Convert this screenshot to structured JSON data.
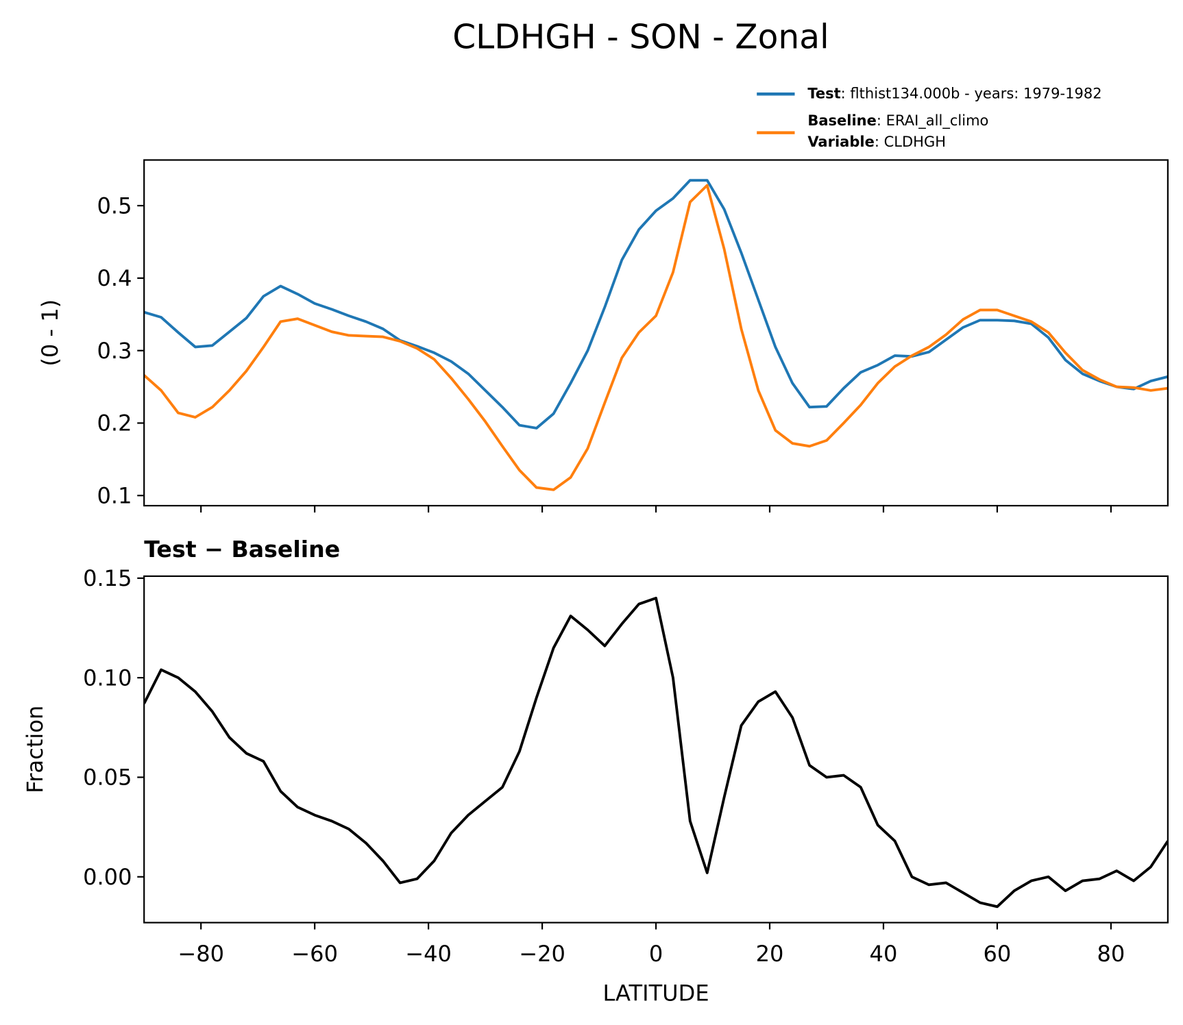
{
  "title": "CLDHGH - SON - Zonal",
  "legend": [
    {
      "name": "Test",
      "label": ": flthist134.000b - years: 1979-1982",
      "color": "#1f77b4"
    },
    {
      "name": "Baseline",
      "label": ": ERAI_all_climo",
      "name2": "Variable",
      "label2": ": CLDHGH",
      "color": "#ff7f0e"
    }
  ],
  "chart_data": [
    {
      "type": "line",
      "ylabel": "(0 - 1)",
      "x": [
        -90,
        -87,
        -84,
        -81,
        -78,
        -75,
        -72,
        -69,
        -66,
        -63,
        -60,
        -57,
        -54,
        -51,
        -48,
        -45,
        -42,
        -39,
        -36,
        -33,
        -30,
        -27,
        -24,
        -21,
        -18,
        -15,
        -12,
        -9,
        -6,
        -3,
        0,
        3,
        6,
        9,
        12,
        15,
        18,
        21,
        24,
        27,
        30,
        33,
        36,
        39,
        42,
        45,
        48,
        51,
        54,
        57,
        60,
        63,
        66,
        69,
        72,
        75,
        78,
        81,
        84,
        87,
        90
      ],
      "series": [
        {
          "name": "Test",
          "color": "#1f77b4",
          "values": [
            0.353,
            0.346,
            0.325,
            0.305,
            0.307,
            0.326,
            0.345,
            0.375,
            0.389,
            0.378,
            0.365,
            0.357,
            0.348,
            0.34,
            0.33,
            0.314,
            0.306,
            0.297,
            0.285,
            0.268,
            0.245,
            0.222,
            0.197,
            0.193,
            0.213,
            0.255,
            0.3,
            0.36,
            0.425,
            0.467,
            0.493,
            0.51,
            0.535,
            0.535,
            0.495,
            0.435,
            0.37,
            0.305,
            0.255,
            0.222,
            0.223,
            0.248,
            0.27,
            0.28,
            0.293,
            0.292,
            0.298,
            0.315,
            0.332,
            0.342,
            0.342,
            0.341,
            0.337,
            0.318,
            0.287,
            0.268,
            0.258,
            0.25,
            0.247,
            0.258,
            0.264
          ]
        },
        {
          "name": "Baseline",
          "color": "#ff7f0e",
          "values": [
            0.266,
            0.245,
            0.214,
            0.208,
            0.222,
            0.245,
            0.272,
            0.305,
            0.34,
            0.344,
            0.335,
            0.326,
            0.321,
            0.32,
            0.319,
            0.313,
            0.303,
            0.288,
            0.262,
            0.233,
            0.202,
            0.168,
            0.135,
            0.111,
            0.108,
            0.125,
            0.165,
            0.228,
            0.29,
            0.325,
            0.348,
            0.408,
            0.505,
            0.528,
            0.44,
            0.33,
            0.245,
            0.19,
            0.172,
            0.168,
            0.176,
            0.2,
            0.225,
            0.255,
            0.278,
            0.293,
            0.305,
            0.322,
            0.343,
            0.356,
            0.356,
            0.348,
            0.34,
            0.325,
            0.297,
            0.273,
            0.26,
            0.25,
            0.249,
            0.245,
            0.248
          ]
        }
      ],
      "xlim": [
        -90,
        90
      ],
      "xticks": [
        -80,
        -60,
        -40,
        -20,
        0,
        20,
        40,
        60,
        80
      ],
      "ylim": [
        0.086,
        0.563
      ],
      "yticks": [
        0.1,
        0.2,
        0.3,
        0.4,
        0.5
      ]
    },
    {
      "type": "line",
      "title": "Test − Baseline",
      "ylabel": "Fraction",
      "xlabel": "LATITUDE",
      "x": [
        -90,
        -87,
        -84,
        -81,
        -78,
        -75,
        -72,
        -69,
        -66,
        -63,
        -60,
        -57,
        -54,
        -51,
        -48,
        -45,
        -42,
        -39,
        -36,
        -33,
        -30,
        -27,
        -24,
        -21,
        -18,
        -15,
        -12,
        -9,
        -6,
        -3,
        0,
        3,
        6,
        9,
        12,
        15,
        18,
        21,
        24,
        27,
        30,
        33,
        36,
        39,
        42,
        45,
        48,
        51,
        54,
        57,
        60,
        63,
        66,
        69,
        72,
        75,
        78,
        81,
        84,
        87,
        90
      ],
      "series": [
        {
          "color": "#000000",
          "values": [
            0.087,
            0.104,
            0.1,
            0.093,
            0.083,
            0.07,
            0.062,
            0.058,
            0.043,
            0.035,
            0.031,
            0.028,
            0.024,
            0.017,
            0.008,
            -0.003,
            -0.001,
            0.008,
            0.022,
            0.031,
            0.038,
            0.045,
            0.063,
            0.09,
            0.115,
            0.131,
            0.124,
            0.116,
            0.127,
            0.137,
            0.14,
            0.1,
            0.028,
            0.002,
            0.04,
            0.076,
            0.088,
            0.093,
            0.08,
            0.056,
            0.05,
            0.051,
            0.045,
            0.026,
            0.018,
            0.0,
            -0.004,
            -0.003,
            -0.008,
            -0.013,
            -0.015,
            -0.007,
            -0.002,
            0.0,
            -0.007,
            -0.002,
            -0.001,
            0.003,
            -0.002,
            0.005,
            0.018
          ]
        }
      ],
      "xlim": [
        -90,
        90
      ],
      "xticks": [
        {
          "value": -80,
          "label": "−80"
        },
        {
          "value": -60,
          "label": "−60"
        },
        {
          "value": -40,
          "label": "−40"
        },
        {
          "value": -20,
          "label": "−20"
        },
        0,
        20,
        40,
        60,
        80
      ],
      "ylim": [
        -0.023,
        0.151
      ],
      "yticks": [
        {
          "value": 0,
          "label": "0.00"
        },
        0.05,
        {
          "value": 0.1,
          "label": "0.10"
        },
        0.15
      ]
    }
  ]
}
